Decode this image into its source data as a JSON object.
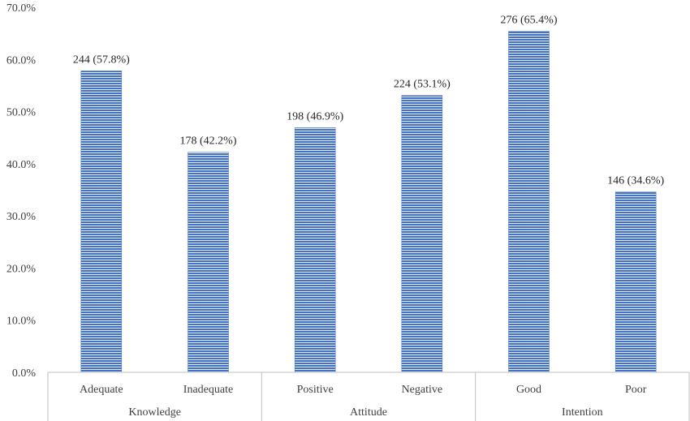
{
  "chart_data": {
    "type": "bar",
    "title": "",
    "xlabel": "",
    "ylabel": "",
    "ylim": [
      0,
      70
    ],
    "yticks": [
      "0.0%",
      "10.0%",
      "20.0%",
      "30.0%",
      "40.0%",
      "50.0%",
      "60.0%",
      "70.0%"
    ],
    "ytick_values": [
      0,
      10,
      20,
      30,
      40,
      50,
      60,
      70
    ],
    "groups": [
      {
        "name": "Knowledge",
        "categories": [
          "Adequate",
          "Inadequate"
        ]
      },
      {
        "name": "Attitude",
        "categories": [
          "Positive",
          "Negative"
        ]
      },
      {
        "name": "Intention",
        "categories": [
          "Good",
          "Poor"
        ]
      }
    ],
    "categories": [
      "Adequate",
      "Inadequate",
      "Positive",
      "Negative",
      "Good",
      "Poor"
    ],
    "values": [
      57.8,
      42.2,
      46.9,
      53.1,
      65.4,
      34.6
    ],
    "counts": [
      244,
      178,
      198,
      224,
      276,
      146
    ],
    "data_labels": [
      "244 (57.8%)",
      "178 (42.2%)",
      "198 (46.9%)",
      "224 (53.1%)",
      "276 (65.4%)",
      "146 (34.6%)"
    ],
    "grid": false,
    "legend": "none",
    "bar_color": "#4472C4",
    "bar_stripe_color": "#ffffff"
  }
}
